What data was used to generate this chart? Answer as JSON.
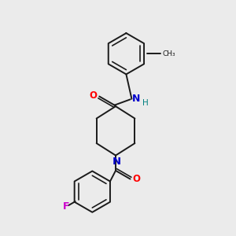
{
  "background_color": "#ebebeb",
  "bond_color": "#1a1a1a",
  "atom_colors": {
    "O": "#ff0000",
    "N": "#0000cc",
    "H": "#008080",
    "F": "#cc00cc"
  },
  "figsize": [
    3.0,
    3.0
  ],
  "dpi": 100
}
